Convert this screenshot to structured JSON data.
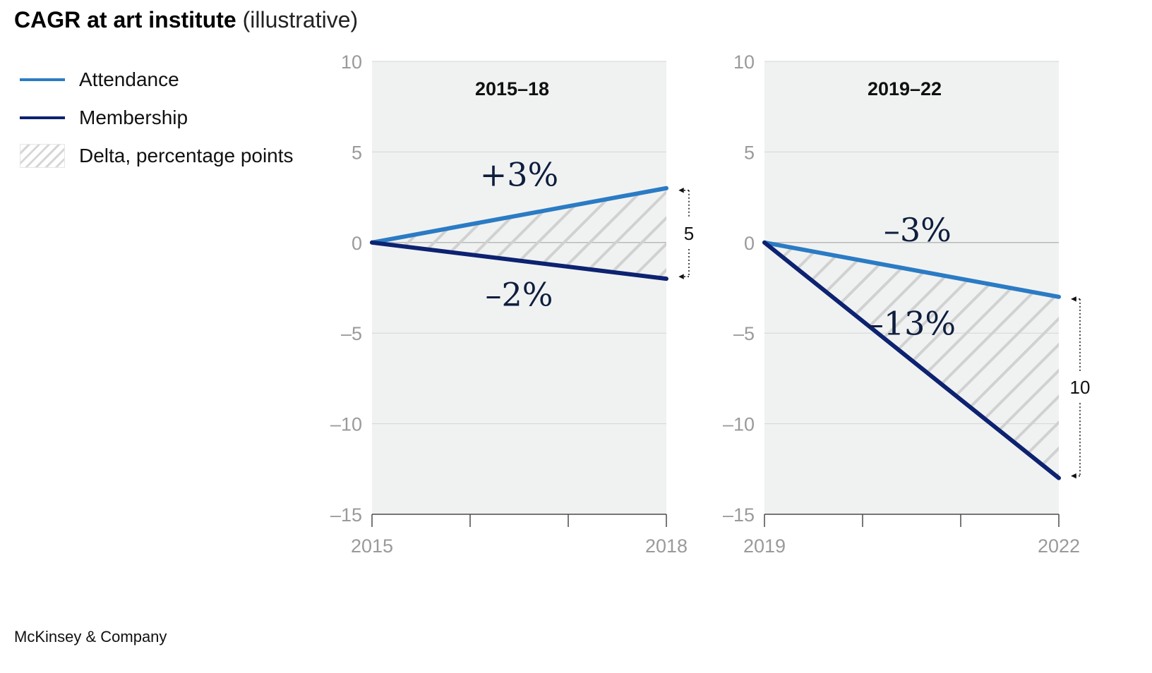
{
  "title": {
    "bold": "CAGR at art institute",
    "light": "(illustrative)"
  },
  "legend": {
    "items": [
      {
        "label": "Attendance",
        "color": "#2b7bc4",
        "kind": "line"
      },
      {
        "label": "Membership",
        "color": "#0d2270",
        "kind": "line"
      },
      {
        "label": "Delta, percentage points",
        "color": "#d6d6d6",
        "kind": "hatch"
      }
    ]
  },
  "source": "McKinsey & Company",
  "colors": {
    "plot_bg": "#f0f2f2",
    "attendance": "#2b7bc4",
    "membership": "#0d2270",
    "hatch": "#cfcfcf",
    "gridline": "#d4d4d4"
  },
  "chart_data": [
    {
      "type": "line",
      "title": "2015–18",
      "x": [
        "2015",
        "2018"
      ],
      "x_tick_labels": [
        "2015",
        "",
        "",
        "2018"
      ],
      "ylim": [
        -15,
        10
      ],
      "yticks": [
        10,
        5,
        0,
        -5,
        -10,
        -15
      ],
      "ytick_labels": [
        "10",
        "5",
        "0",
        "–5",
        "–10",
        "–15"
      ],
      "series": [
        {
          "name": "Attendance",
          "values": [
            0,
            3
          ],
          "label": "+3%"
        },
        {
          "name": "Membership",
          "values": [
            0,
            -2
          ],
          "label": "–2%"
        }
      ],
      "delta": {
        "value": 5,
        "label": "5"
      }
    },
    {
      "type": "line",
      "title": "2019–22",
      "x": [
        "2019",
        "2022"
      ],
      "x_tick_labels": [
        "2019",
        "",
        "",
        "2022"
      ],
      "ylim": [
        -15,
        10
      ],
      "yticks": [
        10,
        5,
        0,
        -5,
        -10,
        -15
      ],
      "ytick_labels": [
        "10",
        "5",
        "0",
        "–5",
        "–10",
        "–15"
      ],
      "series": [
        {
          "name": "Attendance",
          "values": [
            0,
            -3
          ],
          "label": "–3%"
        },
        {
          "name": "Membership",
          "values": [
            0,
            -13
          ],
          "label": "–13%"
        }
      ],
      "delta": {
        "value": 10,
        "label": "10"
      }
    }
  ]
}
